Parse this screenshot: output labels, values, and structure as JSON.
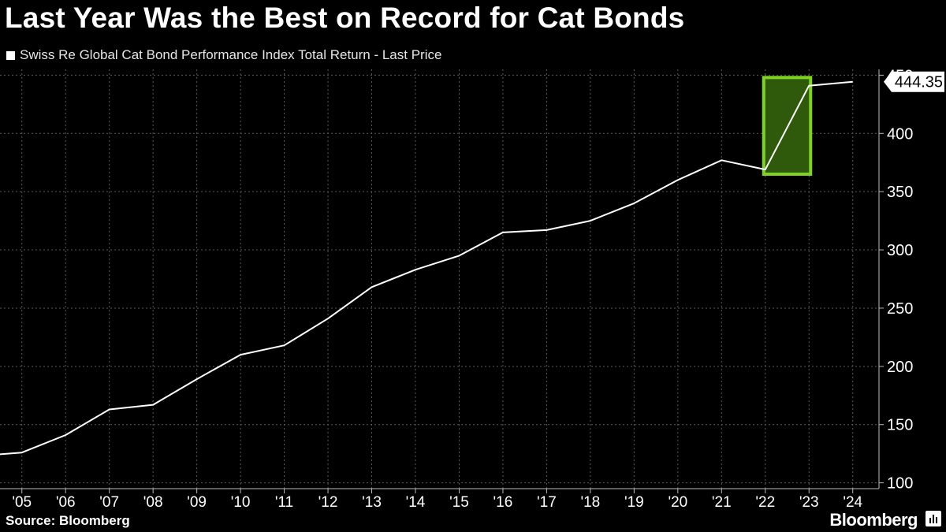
{
  "title": "Last Year Was the Best on Record for Cat Bonds",
  "legend_label": "Swiss Re Global Cat Bond Performance Index Total Return - Last Price",
  "source": "Source: Bloomberg",
  "brand": "Bloomberg",
  "colors": {
    "background": "#000000",
    "line": "#ffffff",
    "highlight": "#7fd321",
    "highlight_fill": "#2f5a0c"
  },
  "chart_data": {
    "type": "line",
    "title": "Last Year Was the Best on Record for Cat Bonds",
    "xlabel": "",
    "ylabel": "",
    "x_ticks": [
      "'05",
      "'06",
      "'07",
      "'08",
      "'09",
      "'10",
      "'11",
      "'12",
      "'13",
      "'14",
      "'15",
      "'16",
      "'17",
      "'18",
      "'19",
      "'20",
      "'21",
      "'22",
      "'23",
      "'24"
    ],
    "y_ticks": [
      100,
      150,
      200,
      250,
      300,
      350,
      400,
      450
    ],
    "ylim": [
      95,
      455
    ],
    "grid": true,
    "legend_position": "top-left",
    "last_value_label": "444.35",
    "series": [
      {
        "name": "Swiss Re Global Cat Bond Performance Index Total Return - Last Price",
        "x": [
          "2004-01",
          "2005-01",
          "2006-01",
          "2007-01",
          "2008-01",
          "2009-01",
          "2010-01",
          "2011-01",
          "2012-01",
          "2013-01",
          "2014-01",
          "2015-01",
          "2016-01",
          "2017-01",
          "2018-01",
          "2019-01",
          "2020-01",
          "2021-01",
          "2022-01",
          "2023-01",
          "2024-01"
        ],
        "values": [
          123,
          126,
          141,
          163,
          167,
          189,
          210,
          218,
          241,
          268,
          283,
          295,
          315,
          317,
          325,
          340,
          360,
          377,
          369,
          441,
          444.35
        ]
      }
    ],
    "highlight": {
      "x_start": "2022-01",
      "x_end": "2023-01",
      "label": ""
    }
  }
}
